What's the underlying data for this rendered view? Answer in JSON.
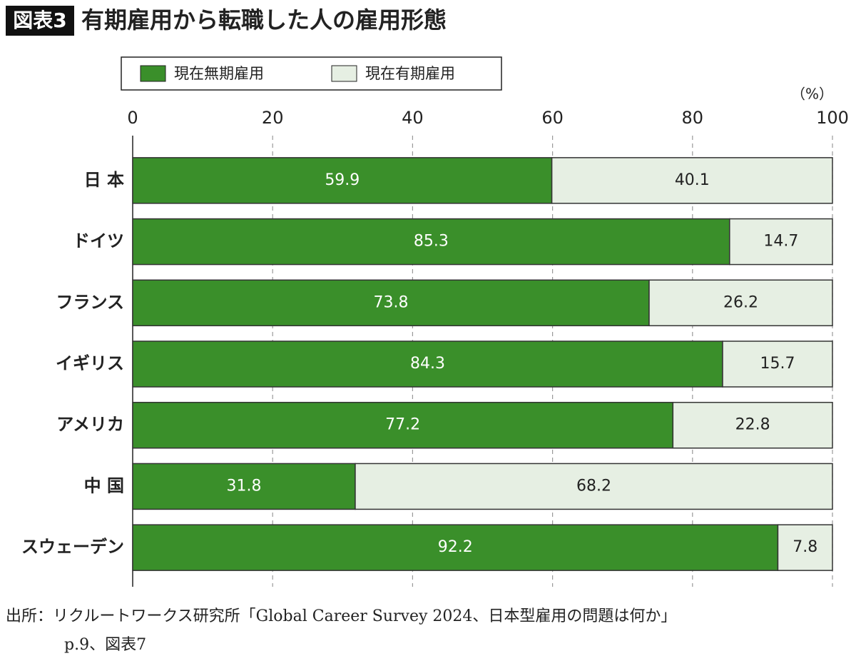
{
  "chart_data": {
    "type": "stacked-bar-horizontal",
    "figure_label": "図表3",
    "title": "有期雇用から転職した人の雇用形態",
    "unit_label": "（%）",
    "categories": [
      "日 本",
      "ドイツ",
      "フランス",
      "イギリス",
      "アメリカ",
      "中 国",
      "スウェーデン"
    ],
    "series": [
      {
        "name": "現在無期雇用",
        "color": "#3a8f2a",
        "label_color": "#ffffff",
        "values": [
          59.9,
          85.3,
          73.8,
          84.3,
          77.2,
          31.8,
          92.2
        ]
      },
      {
        "name": "現在有期雇用",
        "color": "#e6efe3",
        "label_color": "#222222",
        "values": [
          40.1,
          14.7,
          26.2,
          15.7,
          22.8,
          68.2,
          7.8
        ]
      }
    ],
    "xlim": [
      0,
      100
    ],
    "xticks": [
      0,
      20,
      40,
      60,
      80,
      100
    ],
    "grid": true,
    "source": [
      "出所：リクルートワークス研究所「Global Career Survey 2024、日本型雇用の問題は何か」",
      "p.9、図表7"
    ]
  }
}
